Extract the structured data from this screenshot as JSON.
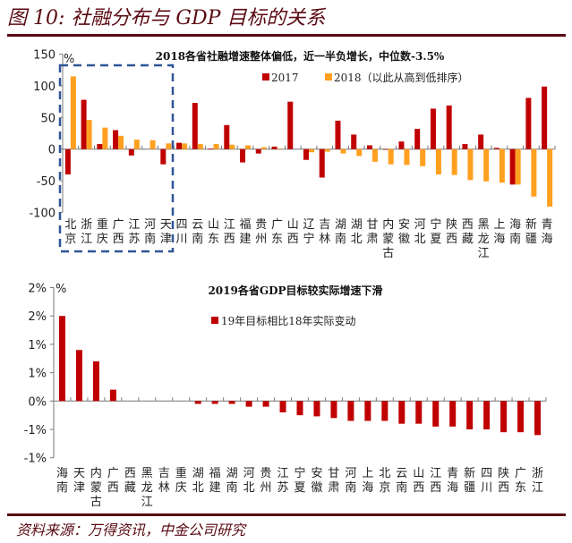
{
  "figure_title": "图 10: 社融分布与 GDP 目标的关系",
  "source": "资料来源：万得资讯，中金公司研究",
  "colors": {
    "series_2017": "#c00000",
    "series_2018": "#ffa020",
    "highlight_box": "#2f5597",
    "rule": "#5a0a12"
  },
  "chart_data": [
    {
      "type": "bar",
      "title": "2018各省社融增速整体偏低，近一半负增长，中位数-3.5%",
      "ylabel": "%",
      "ylim": [
        -100,
        150
      ],
      "yticks": [
        "150",
        "100",
        "50",
        "0",
        "-50",
        "-100"
      ],
      "grid": false,
      "legend_position": "top-right",
      "highlight": "dashed box around first 7 provinces",
      "categories": [
        "北京",
        "浙江",
        "重庆",
        "广西",
        "江苏",
        "河南",
        "天津",
        "四川",
        "云南",
        "山东",
        "江西",
        "福建",
        "贵州",
        "广东",
        "山西",
        "辽宁",
        "吉林",
        "湖南",
        "湖北",
        "甘肃",
        "内蒙古",
        "安徽",
        "河北",
        "宁夏",
        "陕西",
        "西藏",
        "黑龙江",
        "上海",
        "海南",
        "新疆",
        "青海"
      ],
      "series": [
        {
          "name": "2017",
          "values": [
            -40,
            78,
            8,
            30,
            -10,
            0,
            -24,
            10,
            73,
            1,
            38,
            -21,
            -7,
            4,
            75,
            -17,
            -45,
            45,
            23,
            6,
            -1,
            12,
            32,
            64,
            69,
            8,
            23,
            2,
            -56,
            81,
            99
          ]
        },
        {
          "name": "2018（以此从高到低排序）",
          "values": [
            115,
            46,
            34,
            21,
            15,
            14,
            9,
            9,
            8,
            8,
            7,
            6,
            3,
            1,
            0,
            -5,
            -4,
            -7,
            -11,
            -20,
            -24,
            -25,
            -27,
            -40,
            -41,
            -49,
            -51,
            -53,
            -56,
            -75,
            -91
          ]
        }
      ]
    },
    {
      "type": "bar",
      "title": "2019各省GDP目标较实际增速下滑",
      "ylabel": "%",
      "ylim": [
        -1,
        2
      ],
      "yticks": [
        "2%",
        "2%",
        "1%",
        "1%",
        "0%",
        "-1%",
        "-1%"
      ],
      "grid": false,
      "legend_position": "top",
      "categories": [
        "海南",
        "天津",
        "内蒙古",
        "广西",
        "西藏",
        "黑龙江",
        "吉林",
        "重庆",
        "湖北",
        "福建",
        "湖南",
        "河北",
        "贵州",
        "江苏",
        "宁夏",
        "安徽",
        "甘肃",
        "河南",
        "上海",
        "北京",
        "云南",
        "山西",
        "江西",
        "青海",
        "新疆",
        "四川",
        "陕西",
        "广东",
        "浙江"
      ],
      "series": [
        {
          "name": "19年目标相比18年实际变动",
          "values": [
            1.5,
            0.9,
            0.7,
            0.2,
            0,
            0,
            0,
            0,
            -0.05,
            -0.05,
            -0.05,
            -0.1,
            -0.1,
            -0.2,
            -0.25,
            -0.27,
            -0.3,
            -0.35,
            -0.35,
            -0.35,
            -0.4,
            -0.4,
            -0.45,
            -0.45,
            -0.5,
            -0.5,
            -0.55,
            -0.55,
            -0.6
          ]
        }
      ]
    }
  ]
}
